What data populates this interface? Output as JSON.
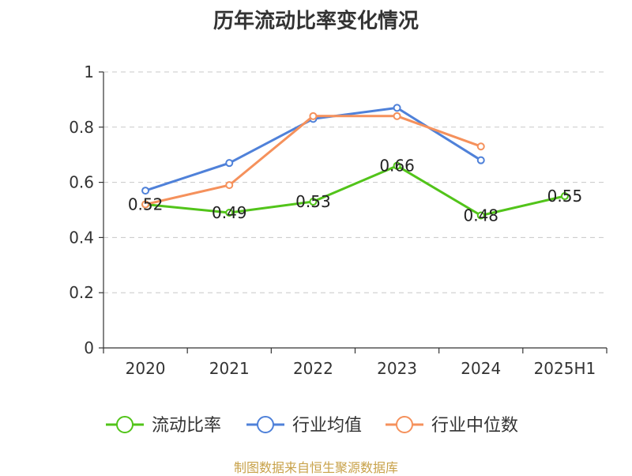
{
  "chart_data": {
    "type": "line",
    "title": "历年流动比率变化情况",
    "categories": [
      "2020",
      "2021",
      "2022",
      "2023",
      "2024",
      "2025H1"
    ],
    "ylim": [
      0,
      1
    ],
    "yticks": [
      "0",
      "0.2",
      "0.4",
      "0.6",
      "0.8",
      "1"
    ],
    "ytick_values": [
      0,
      0.2,
      0.4,
      0.6,
      0.8,
      1
    ],
    "grid": true,
    "legend_position": "bottom",
    "series": [
      {
        "name": "流动比率",
        "color": "#52c41a",
        "values": [
          0.52,
          0.49,
          0.53,
          0.66,
          0.48,
          0.55
        ],
        "labels": [
          "0.52",
          "0.49",
          "0.53",
          "0.66",
          "0.48",
          "0.55"
        ]
      },
      {
        "name": "行业均值",
        "color": "#4f81d9",
        "values": [
          0.57,
          0.67,
          0.83,
          0.87,
          0.68,
          null
        ]
      },
      {
        "name": "行业中位数",
        "color": "#f5915c",
        "values": [
          0.52,
          0.59,
          0.84,
          0.84,
          0.73,
          null
        ]
      }
    ]
  },
  "footer": {
    "source": "制图数据来自恒生聚源数据库"
  }
}
